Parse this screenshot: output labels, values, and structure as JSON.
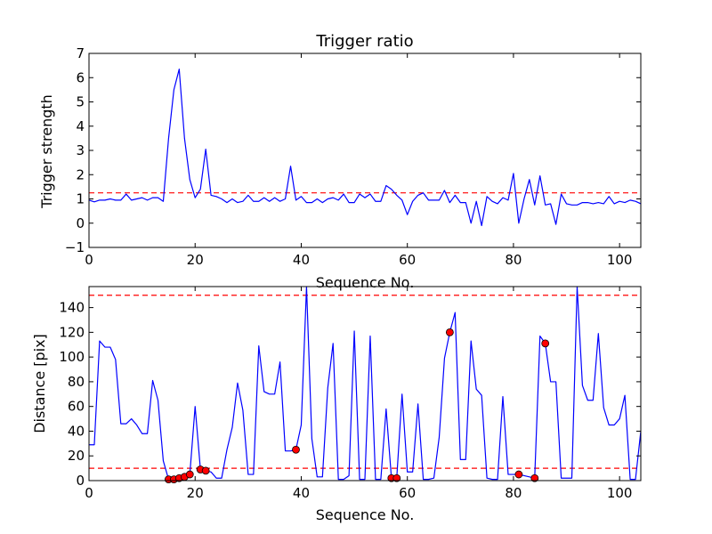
{
  "chart_data": [
    {
      "type": "line",
      "title": "Trigger ratio",
      "xlabel": "Sequence No.",
      "ylabel": "Trigger strength",
      "xlim": [
        0,
        104
      ],
      "ylim": [
        -1,
        7
      ],
      "xticks": [
        "0",
        "20",
        "40",
        "60",
        "80",
        "100"
      ],
      "yticks": [
        "−1",
        "0",
        "1",
        "2",
        "3",
        "4",
        "5",
        "6",
        "7"
      ],
      "grid": false,
      "line_color": "#0000ff",
      "threshold_color": "#ff0000",
      "thresholds": [
        1.25
      ],
      "series": [
        {
          "x": [
            0,
            1,
            2,
            3,
            4,
            5,
            6,
            7,
            8,
            9,
            10,
            11,
            12,
            13,
            14,
            15,
            16,
            17,
            18,
            19,
            20,
            21,
            22,
            23,
            24,
            25,
            26,
            27,
            28,
            29,
            30,
            31,
            32,
            33,
            34,
            35,
            36,
            37,
            38,
            39,
            40,
            41,
            42,
            43,
            44,
            45,
            46,
            47,
            48,
            49,
            50,
            51,
            52,
            53,
            54,
            55,
            56,
            57,
            58,
            59,
            60,
            61,
            62,
            63,
            64,
            65,
            66,
            67,
            68,
            69,
            70,
            71,
            72,
            73,
            74,
            75,
            76,
            77,
            78,
            79,
            80,
            81,
            82,
            83,
            84,
            85,
            86,
            87,
            88,
            89,
            90,
            91,
            92,
            93,
            94,
            95,
            96,
            97,
            98,
            99,
            100,
            101,
            102,
            103,
            104
          ],
          "y": [
            0.95,
            0.88,
            0.95,
            0.95,
            1.0,
            0.95,
            0.95,
            1.2,
            0.95,
            1.0,
            1.05,
            0.95,
            1.05,
            1.05,
            0.9,
            3.5,
            5.5,
            6.35,
            3.5,
            1.8,
            1.05,
            1.4,
            3.05,
            1.15,
            1.1,
            1.0,
            0.85,
            1.0,
            0.85,
            0.9,
            1.15,
            0.9,
            0.9,
            1.05,
            0.9,
            1.05,
            0.9,
            1.0,
            2.35,
            0.95,
            1.1,
            0.85,
            0.85,
            1.0,
            0.85,
            1.0,
            1.05,
            0.95,
            1.2,
            0.85,
            0.85,
            1.2,
            1.05,
            1.2,
            0.9,
            0.9,
            1.55,
            1.4,
            1.15,
            0.95,
            0.35,
            0.9,
            1.15,
            1.25,
            0.95,
            0.95,
            0.95,
            1.35,
            0.85,
            1.15,
            0.85,
            0.85,
            0.0,
            0.9,
            -0.1,
            1.1,
            0.9,
            0.8,
            1.05,
            0.95,
            2.05,
            0.0,
            1.0,
            1.8,
            0.75,
            1.95,
            0.75,
            0.8,
            -0.05,
            1.2,
            0.8,
            0.75,
            0.75,
            0.85,
            0.85,
            0.8,
            0.85,
            0.8,
            1.1,
            0.8,
            0.9,
            0.85,
            0.95,
            0.9,
            0.8
          ]
        }
      ]
    },
    {
      "type": "line",
      "title": "",
      "xlabel": "Sequence No.",
      "ylabel": "Distance [pix]",
      "xlim": [
        0,
        104
      ],
      "ylim": [
        0,
        157
      ],
      "xticks": [
        "0",
        "20",
        "40",
        "60",
        "80",
        "100"
      ],
      "yticks": [
        "0",
        "20",
        "40",
        "60",
        "80",
        "100",
        "120",
        "140"
      ],
      "grid": false,
      "line_color": "#0000ff",
      "threshold_color": "#ff0000",
      "marker_color": "#ff0000",
      "thresholds": [
        10,
        150
      ],
      "series": [
        {
          "x": [
            0,
            1,
            2,
            3,
            4,
            5,
            6,
            7,
            8,
            9,
            10,
            11,
            12,
            13,
            14,
            15,
            16,
            17,
            18,
            19,
            20,
            21,
            22,
            23,
            24,
            25,
            26,
            27,
            28,
            29,
            30,
            31,
            32,
            33,
            34,
            35,
            36,
            37,
            38,
            39,
            40,
            41,
            42,
            43,
            44,
            45,
            46,
            47,
            48,
            49,
            50,
            51,
            52,
            53,
            54,
            55,
            56,
            57,
            58,
            59,
            60,
            61,
            62,
            63,
            64,
            65,
            66,
            67,
            68,
            69,
            70,
            71,
            72,
            73,
            74,
            75,
            76,
            77,
            78,
            79,
            80,
            81,
            82,
            83,
            84,
            85,
            86,
            87,
            88,
            89,
            90,
            91,
            92,
            93,
            94,
            95,
            96,
            97,
            98,
            99,
            100,
            101,
            102,
            103,
            104
          ],
          "y": [
            29,
            29,
            113,
            108,
            108,
            98,
            46,
            46,
            50,
            45,
            38,
            38,
            81,
            65,
            16,
            1,
            1,
            2,
            3,
            5,
            60,
            9,
            8,
            7,
            2,
            2,
            25,
            43,
            79,
            57,
            5,
            5,
            109,
            72,
            70,
            70,
            96,
            24,
            24,
            25,
            45,
            157,
            34,
            3,
            3,
            75,
            111,
            1,
            1,
            4,
            121,
            1,
            1,
            117,
            1,
            1,
            58,
            2,
            2,
            70,
            7,
            7,
            62,
            1,
            1,
            2,
            35,
            99,
            120,
            136,
            17,
            17,
            113,
            74,
            69,
            2,
            1,
            1,
            68,
            5,
            5,
            5,
            4,
            3,
            2,
            117,
            111,
            80,
            80,
            2,
            2,
            2,
            157,
            77,
            65,
            65,
            119,
            59,
            45,
            45,
            50,
            69,
            1,
            1,
            40
          ]
        }
      ],
      "markers": [
        {
          "x": 15,
          "y": 1
        },
        {
          "x": 16,
          "y": 1
        },
        {
          "x": 17,
          "y": 2
        },
        {
          "x": 18,
          "y": 3
        },
        {
          "x": 19,
          "y": 5
        },
        {
          "x": 21,
          "y": 9
        },
        {
          "x": 22,
          "y": 8
        },
        {
          "x": 39,
          "y": 25
        },
        {
          "x": 57,
          "y": 2
        },
        {
          "x": 58,
          "y": 2
        },
        {
          "x": 68,
          "y": 120
        },
        {
          "x": 81,
          "y": 5
        },
        {
          "x": 84,
          "y": 2
        },
        {
          "x": 86,
          "y": 111
        }
      ]
    }
  ]
}
